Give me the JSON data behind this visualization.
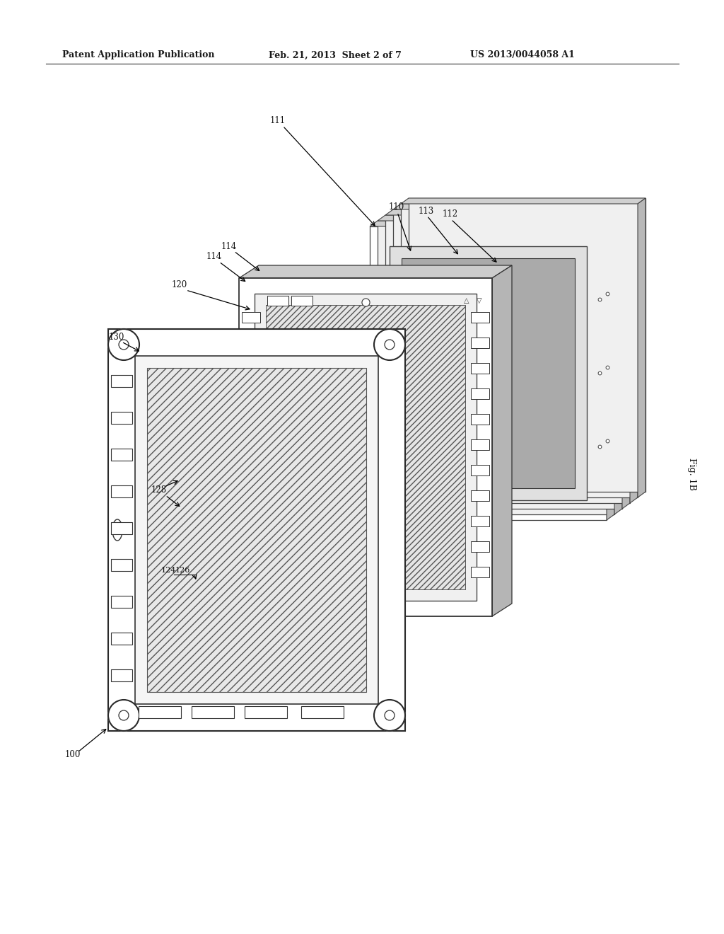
{
  "bg_color": "#ffffff",
  "header_left": "Patent Application Publication",
  "header_mid": "Feb. 21, 2013  Sheet 2 of 7",
  "header_right": "US 2013/0044058 A1",
  "fig_label": "Fig. 1B",
  "ref_100": "100",
  "ref_111": "111",
  "ref_110": "110",
  "ref_113": "113",
  "ref_112": "112",
  "ref_130": "130",
  "ref_120": "120",
  "ref_114a": "114",
  "ref_114b": "114",
  "ref_128": "128",
  "ref_124": "124",
  "ref_126": "126"
}
